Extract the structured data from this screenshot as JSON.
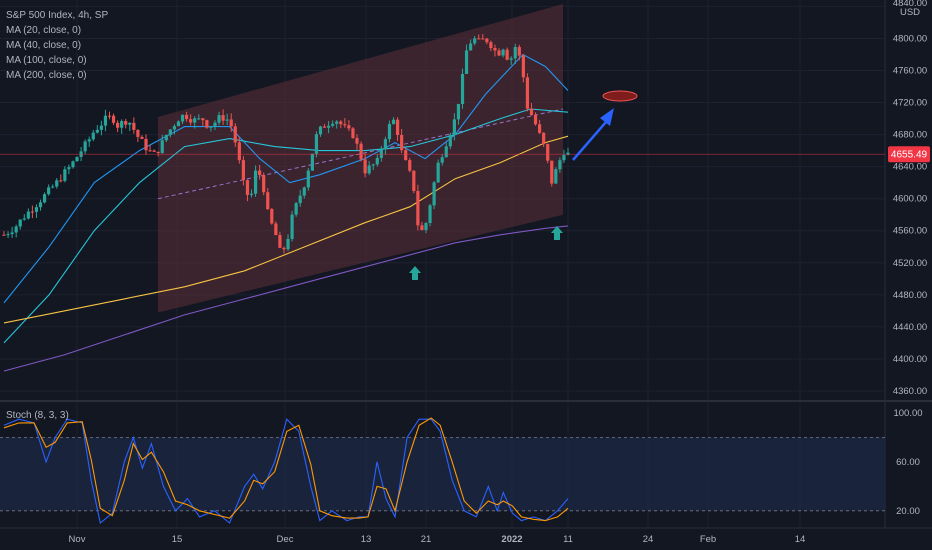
{
  "legend": {
    "title": "S&P 500 Index, 4h, SP",
    "ma20": "MA (20, close, 0)",
    "ma40": "MA (40, close, 0)",
    "ma100": "MA (100, close, 0)",
    "ma200": "MA (200, close, 0)"
  },
  "stoch_legend": "Stoch (8, 3, 3)",
  "currency": "USD",
  "last_price": "4655.49",
  "colors": {
    "background": "#131722",
    "up": "#26a69a",
    "down": "#ef5350",
    "ma20": "#2196f3",
    "ma40": "#26c6da",
    "ma100": "#f6c343",
    "ma200": "#7e57c2",
    "channel": "#5d2f38",
    "arrow_up": "#26a69a",
    "arrow_blue": "#2962ff",
    "stoch_k": "#2962ff",
    "stoch_d": "#ff9800"
  },
  "chart_data": [
    {
      "type": "candlestick",
      "title": "S&P 500 Index, 4h, SP",
      "ylim": [
        4355,
        4843
      ],
      "y_ticks": [
        "4840.00",
        "4800.00",
        "4760.00",
        "4720.00",
        "4680.00",
        "4640.00",
        "4600.00",
        "4560.00",
        "4520.00",
        "4480.00",
        "4440.00",
        "4400.00",
        "4360.00"
      ],
      "y_tick_values": [
        4840,
        4800,
        4760,
        4720,
        4680,
        4640,
        4600,
        4560,
        4520,
        4480,
        4440,
        4400,
        4360
      ],
      "x_ticks": [
        "Nov",
        "15",
        "Dec",
        "13",
        "21",
        "2022",
        "11",
        "24",
        "Feb",
        "14"
      ],
      "price_line": 4655.49,
      "close_path": [
        [
          0,
          4555
        ],
        [
          4,
          4560
        ],
        [
          8,
          4566
        ],
        [
          12,
          4575
        ],
        [
          16,
          4583
        ],
        [
          20,
          4590
        ],
        [
          24,
          4598
        ],
        [
          28,
          4606
        ],
        [
          32,
          4614
        ],
        [
          36,
          4622
        ],
        [
          40,
          4632
        ],
        [
          44,
          4640
        ],
        [
          48,
          4651
        ],
        [
          52,
          4662
        ],
        [
          56,
          4672
        ],
        [
          60,
          4685
        ],
        [
          64,
          4692
        ],
        [
          68,
          4700
        ],
        [
          72,
          4702
        ],
        [
          76,
          4690
        ],
        [
          80,
          4698
        ],
        [
          84,
          4695
        ],
        [
          88,
          4680
        ],
        [
          92,
          4670
        ],
        [
          96,
          4660
        ],
        [
          100,
          4655
        ],
        [
          104,
          4665
        ],
        [
          108,
          4680
        ],
        [
          112,
          4690
        ],
        [
          116,
          4700
        ],
        [
          120,
          4705
        ],
        [
          124,
          4700
        ],
        [
          128,
          4697
        ],
        [
          132,
          4700
        ],
        [
          136,
          4690
        ],
        [
          140,
          4695
        ],
        [
          144,
          4702
        ],
        [
          148,
          4700
        ],
        [
          152,
          4688
        ],
        [
          156,
          4650
        ],
        [
          160,
          4610
        ],
        [
          164,
          4600
        ],
        [
          168,
          4640
        ],
        [
          172,
          4620
        ],
        [
          176,
          4575
        ],
        [
          180,
          4560
        ],
        [
          184,
          4530
        ],
        [
          188,
          4545
        ],
        [
          192,
          4580
        ],
        [
          196,
          4600
        ],
        [
          200,
          4620
        ],
        [
          204,
          4650
        ],
        [
          208,
          4680
        ],
        [
          212,
          4690
        ],
        [
          216,
          4695
        ],
        [
          220,
          4700
        ],
        [
          224,
          4693
        ],
        [
          228,
          4685
        ],
        [
          232,
          4680
        ],
        [
          236,
          4660
        ],
        [
          240,
          4635
        ],
        [
          244,
          4640
        ],
        [
          248,
          4645
        ],
        [
          252,
          4670
        ],
        [
          256,
          4690
        ],
        [
          260,
          4700
        ],
        [
          264,
          4660
        ],
        [
          268,
          4640
        ],
        [
          272,
          4620
        ],
        [
          276,
          4555
        ],
        [
          280,
          4565
        ],
        [
          284,
          4600
        ],
        [
          288,
          4640
        ],
        [
          292,
          4660
        ],
        [
          296,
          4680
        ],
        [
          300,
          4700
        ],
        [
          304,
          4740
        ],
        [
          308,
          4790
        ],
        [
          312,
          4800
        ],
        [
          316,
          4795
        ],
        [
          320,
          4800
        ],
        [
          324,
          4792
        ],
        [
          328,
          4780
        ],
        [
          332,
          4790
        ],
        [
          336,
          4770
        ],
        [
          340,
          4790
        ],
        [
          344,
          4770
        ],
        [
          348,
          4715
        ],
        [
          352,
          4700
        ],
        [
          356,
          4680
        ],
        [
          360,
          4660
        ],
        [
          364,
          4620
        ],
        [
          368,
          4640
        ],
        [
          372,
          4660
        ],
        [
          375,
          4655.49
        ]
      ],
      "series": [
        {
          "name": "MA (20, close, 0)",
          "points": [
            [
              0,
              4470
            ],
            [
              30,
              4540
            ],
            [
              60,
              4620
            ],
            [
              90,
              4660
            ],
            [
              120,
              4690
            ],
            [
              150,
              4690
            ],
            [
              170,
              4650
            ],
            [
              190,
              4620
            ],
            [
              210,
              4630
            ],
            [
              240,
              4650
            ],
            [
              260,
              4670
            ],
            [
              280,
              4650
            ],
            [
              300,
              4680
            ],
            [
              320,
              4730
            ],
            [
              345,
              4780
            ],
            [
              360,
              4765
            ],
            [
              375,
              4735
            ]
          ]
        },
        {
          "name": "MA (40, close, 0)",
          "points": [
            [
              0,
              4420
            ],
            [
              30,
              4480
            ],
            [
              60,
              4560
            ],
            [
              90,
              4620
            ],
            [
              120,
              4665
            ],
            [
              150,
              4675
            ],
            [
              180,
              4665
            ],
            [
              210,
              4660
            ],
            [
              240,
              4660
            ],
            [
              270,
              4665
            ],
            [
              300,
              4680
            ],
            [
              330,
              4700
            ],
            [
              350,
              4712
            ],
            [
              375,
              4708
            ]
          ]
        },
        {
          "name": "MA (100, close, 0)",
          "points": [
            [
              0,
              4445
            ],
            [
              40,
              4460
            ],
            [
              80,
              4475
            ],
            [
              120,
              4490
            ],
            [
              160,
              4510
            ],
            [
              200,
              4540
            ],
            [
              240,
              4570
            ],
            [
              270,
              4590
            ],
            [
              300,
              4625
            ],
            [
              330,
              4645
            ],
            [
              360,
              4670
            ],
            [
              375,
              4678
            ]
          ]
        },
        {
          "name": "MA (200, close, 0)",
          "points": [
            [
              0,
              4385
            ],
            [
              40,
              4405
            ],
            [
              80,
              4430
            ],
            [
              120,
              4455
            ],
            [
              160,
              4475
            ],
            [
              200,
              4495
            ],
            [
              240,
              4515
            ],
            [
              270,
              4530
            ],
            [
              300,
              4545
            ],
            [
              330,
              4555
            ],
            [
              360,
              4563
            ],
            [
              375,
              4566
            ]
          ]
        }
      ]
    },
    {
      "type": "line",
      "title": "Stoch (8, 3, 3)",
      "ylim": [
        10,
        105
      ],
      "y_ticks": [
        "100.00",
        "60.00",
        "20.00"
      ],
      "y_tick_values": [
        100,
        60,
        20
      ],
      "bands": [
        80,
        20
      ],
      "series": [
        {
          "name": "%K",
          "points": [
            [
              0,
              90
            ],
            [
              10,
              95
            ],
            [
              20,
              92
            ],
            [
              28,
              60
            ],
            [
              34,
              80
            ],
            [
              42,
              95
            ],
            [
              52,
              92
            ],
            [
              58,
              45
            ],
            [
              64,
              10
            ],
            [
              72,
              18
            ],
            [
              80,
              60
            ],
            [
              86,
              80
            ],
            [
              92,
              55
            ],
            [
              98,
              75
            ],
            [
              106,
              40
            ],
            [
              114,
              20
            ],
            [
              122,
              30
            ],
            [
              130,
              15
            ],
            [
              140,
              20
            ],
            [
              150,
              10
            ],
            [
              160,
              40
            ],
            [
              166,
              50
            ],
            [
              172,
              38
            ],
            [
              180,
              60
            ],
            [
              188,
              95
            ],
            [
              196,
              85
            ],
            [
              204,
              40
            ],
            [
              210,
              12
            ],
            [
              218,
              20
            ],
            [
              228,
              12
            ],
            [
              236,
              15
            ],
            [
              242,
              15
            ],
            [
              248,
              60
            ],
            [
              254,
              30
            ],
            [
              260,
              15
            ],
            [
              268,
              80
            ],
            [
              276,
              95
            ],
            [
              284,
              95
            ],
            [
              290,
              85
            ],
            [
              298,
              45
            ],
            [
              306,
              20
            ],
            [
              314,
              15
            ],
            [
              322,
              40
            ],
            [
              328,
              20
            ],
            [
              332,
              35
            ],
            [
              338,
              18
            ],
            [
              344,
              12
            ],
            [
              352,
              15
            ],
            [
              360,
              12
            ],
            [
              368,
              20
            ],
            [
              375,
              30
            ]
          ]
        },
        {
          "name": "%D",
          "points": [
            [
              0,
              88
            ],
            [
              10,
              92
            ],
            [
              20,
              92
            ],
            [
              28,
              72
            ],
            [
              34,
              76
            ],
            [
              42,
              92
            ],
            [
              52,
              93
            ],
            [
              58,
              62
            ],
            [
              64,
              22
            ],
            [
              72,
              16
            ],
            [
              80,
              45
            ],
            [
              86,
              75
            ],
            [
              92,
              62
            ],
            [
              98,
              68
            ],
            [
              106,
              52
            ],
            [
              114,
              28
            ],
            [
              122,
              25
            ],
            [
              130,
              20
            ],
            [
              140,
              17
            ],
            [
              150,
              14
            ],
            [
              160,
              28
            ],
            [
              166,
              45
            ],
            [
              172,
              42
            ],
            [
              180,
              52
            ],
            [
              188,
              85
            ],
            [
              196,
              90
            ],
            [
              204,
              58
            ],
            [
              210,
              20
            ],
            [
              218,
              16
            ],
            [
              228,
              14
            ],
            [
              236,
              14
            ],
            [
              242,
              15
            ],
            [
              248,
              40
            ],
            [
              254,
              38
            ],
            [
              260,
              20
            ],
            [
              268,
              60
            ],
            [
              276,
              90
            ],
            [
              284,
              96
            ],
            [
              290,
              90
            ],
            [
              298,
              60
            ],
            [
              306,
              28
            ],
            [
              314,
              18
            ],
            [
              322,
              28
            ],
            [
              328,
              25
            ],
            [
              332,
              28
            ],
            [
              338,
              24
            ],
            [
              344,
              15
            ],
            [
              352,
              13
            ],
            [
              360,
              12
            ],
            [
              368,
              15
            ],
            [
              375,
              22
            ]
          ]
        }
      ]
    }
  ]
}
